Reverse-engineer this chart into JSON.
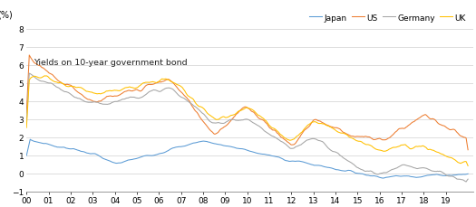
{
  "title": "Yields on 10-year government bond",
  "ylabel": "(%)",
  "xlim": [
    2000.0,
    2020.25
  ],
  "ylim": [
    -1,
    8
  ],
  "yticks": [
    -1,
    0,
    1,
    2,
    3,
    4,
    5,
    6,
    7,
    8
  ],
  "xtick_labels": [
    "00",
    "01",
    "02",
    "03",
    "04",
    "05",
    "06",
    "07",
    "08",
    "09",
    "10",
    "11",
    "12",
    "13",
    "14",
    "15",
    "16",
    "17",
    "18",
    "19"
  ],
  "legend_labels": [
    "Japan",
    "US",
    "Germany",
    "UK"
  ],
  "colors": {
    "Japan": "#5b9bd5",
    "US": "#ed7d31",
    "Germany": "#a5a5a5",
    "UK": "#ffc000"
  },
  "background_color": "#ffffff"
}
